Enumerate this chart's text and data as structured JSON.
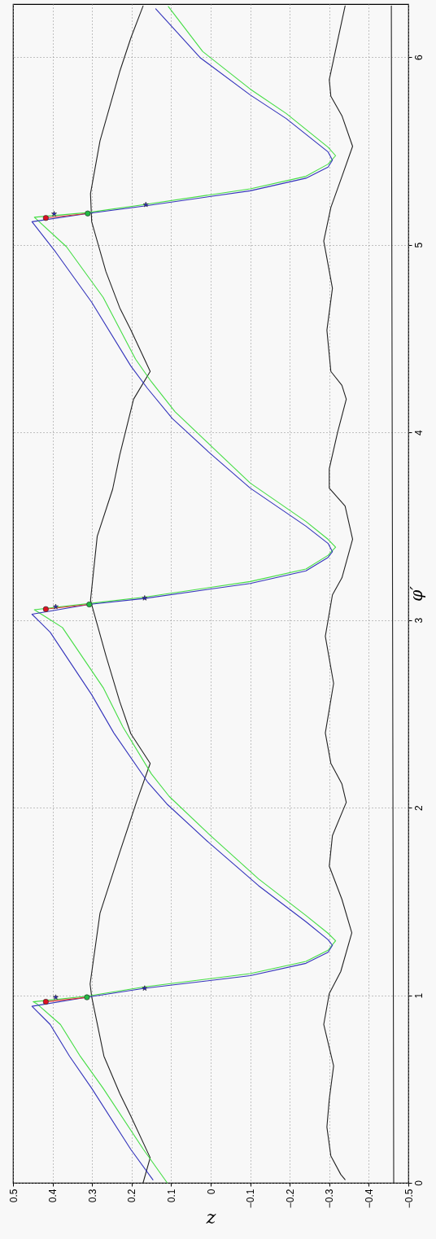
{
  "chart_data": {
    "type": "line",
    "xlabel": "z",
    "ylabel": "φ′",
    "xlim": [
      0.5,
      -0.5
    ],
    "ylim": [
      0,
      6.2832
    ],
    "xticks": [
      0.5,
      0.4,
      0.3,
      0.2,
      0.1,
      0,
      -0.1,
      -0.2,
      -0.3,
      -0.4,
      -0.5
    ],
    "yticks": [
      0,
      1,
      2,
      3,
      4,
      5,
      6
    ],
    "grid": true,
    "series": [
      {
        "color": "#222222",
        "values": [
          0,
          0.134,
          0.356,
          0.476,
          0.675,
          0.992,
          1.06,
          1.437,
          1.762,
          2.028,
          2.236,
          2.394,
          2.565,
          2.81,
          3.105,
          3.446,
          3.697,
          3.88,
          4.177,
          4.325,
          4.546,
          4.664,
          4.857,
          5.123,
          5.273,
          5.554,
          5.924,
          6.102,
          6.273
        ],
        "x": [
          0.171,
          0.153,
          0.202,
          0.23,
          0.27,
          0.301,
          0.305,
          0.28,
          0.23,
          0.188,
          0.153,
          0.202,
          0.23,
          0.265,
          0.304,
          0.287,
          0.248,
          0.23,
          0.195,
          0.153,
          0.202,
          0.23,
          0.265,
          0.301,
          0.304,
          0.28,
          0.23,
          0.202,
          0.171
        ]
      },
      {
        "color": "#222222",
        "values": [
          0.017,
          0.045,
          0.143,
          0.297,
          0.446,
          0.623,
          0.844,
          1.009,
          1.126,
          1.333,
          1.511,
          1.688,
          1.851,
          2.028,
          2.126,
          2.236,
          2.398,
          2.662,
          2.913,
          3.134,
          3.225,
          3.431,
          3.608,
          3.703,
          3.806,
          4.0,
          4.177,
          4.251,
          4.325,
          4.545,
          4.768,
          5.02,
          5.199,
          5.364,
          5.525,
          5.688,
          5.792,
          5.88,
          6.087,
          6.273
        ],
        "x": [
          -0.34,
          -0.329,
          -0.304,
          -0.294,
          -0.3,
          -0.311,
          -0.286,
          -0.3,
          -0.329,
          -0.357,
          -0.332,
          -0.3,
          -0.308,
          -0.343,
          -0.332,
          -0.304,
          -0.29,
          -0.311,
          -0.29,
          -0.308,
          -0.332,
          -0.359,
          -0.34,
          -0.3,
          -0.3,
          -0.321,
          -0.343,
          -0.332,
          -0.304,
          -0.294,
          -0.308,
          -0.286,
          -0.304,
          -0.332,
          -0.359,
          -0.332,
          -0.304,
          -0.3,
          -0.321,
          -0.34
        ]
      },
      {
        "color": "#222222",
        "values": [
          0,
          6.273
        ],
        "x": [
          -0.463,
          -0.457
        ]
      },
      {
        "color": "#44dd44",
        "values": [
          0,
          0.178,
          0.504,
          0.675,
          0.844,
          0.955,
          0.965,
          0.995,
          1.045,
          1.115,
          1.18,
          1.24,
          1.29,
          1.33,
          1.425,
          1.62,
          1.85,
          2.06,
          2.18,
          2.43,
          2.64,
          2.96,
          3.055,
          3.088,
          3.122,
          3.205,
          3.272,
          3.345,
          3.388,
          3.43,
          3.525,
          3.73,
          3.93,
          4.11,
          4.27,
          4.39,
          4.72,
          4.99,
          5.147,
          5.172,
          5.215,
          5.298,
          5.365,
          5.43,
          5.475,
          5.52,
          5.7,
          5.83,
          6.03,
          6.27
        ],
        "x": [
          0.11,
          0.17,
          0.272,
          0.33,
          0.38,
          0.44,
          0.449,
          0.313,
          0.167,
          -0.1,
          -0.241,
          -0.297,
          -0.316,
          -0.297,
          -0.241,
          -0.121,
          0.0,
          0.105,
          0.15,
          0.222,
          0.272,
          0.375,
          0.446,
          0.308,
          0.167,
          -0.1,
          -0.241,
          -0.297,
          -0.316,
          -0.297,
          -0.241,
          -0.1,
          0.0,
          0.09,
          0.15,
          0.19,
          0.272,
          0.365,
          0.446,
          0.311,
          0.167,
          -0.1,
          -0.241,
          -0.297,
          -0.316,
          -0.297,
          -0.191,
          -0.1,
          0.02,
          0.107
        ]
      },
      {
        "color": "#3333bb",
        "values": [
          0.016,
          0.178,
          0.504,
          0.675,
          0.844,
          0.941,
          0.989,
          1.037,
          1.104,
          1.17,
          1.229,
          1.266,
          1.296,
          1.392,
          1.584,
          1.814,
          2.02,
          2.138,
          2.398,
          2.602,
          2.935,
          3.031,
          3.083,
          3.115,
          3.195,
          3.262,
          3.334,
          3.364,
          3.408,
          3.5,
          3.703,
          3.895,
          4.074,
          4.235,
          4.354,
          4.694,
          4.961,
          5.123,
          5.167,
          5.207,
          5.288,
          5.355,
          5.414,
          5.451,
          5.495,
          5.673,
          5.799,
          5.998,
          6.258
        ],
        "x": [
          0.146,
          0.202,
          0.301,
          0.357,
          0.406,
          0.452,
          0.313,
          0.167,
          -0.1,
          -0.241,
          -0.297,
          -0.308,
          -0.297,
          -0.241,
          -0.121,
          0.005,
          0.111,
          0.16,
          0.245,
          0.301,
          0.406,
          0.452,
          0.308,
          0.167,
          -0.1,
          -0.241,
          -0.297,
          -0.308,
          -0.297,
          -0.241,
          -0.1,
          0.005,
          0.097,
          0.16,
          0.202,
          0.301,
          0.392,
          0.452,
          0.311,
          0.167,
          -0.1,
          -0.241,
          -0.297,
          -0.308,
          -0.297,
          -0.191,
          -0.1,
          0.027,
          0.139
        ]
      },
      {
        "color": "#dd3333",
        "values": [
          0.965,
          0.989
        ],
        "x": [
          0.417,
          0.313
        ]
      },
      {
        "color": "#dd3333",
        "values": [
          3.058,
          3.083
        ],
        "x": [
          0.417,
          0.307
        ]
      },
      {
        "color": "#dd3333",
        "values": [
          5.143,
          5.167
        ],
        "x": [
          0.417,
          0.311
        ]
      },
      {
        "type": "scatter",
        "marker": "circle",
        "color": "#dd1122",
        "values": [
          0.965,
          3.058,
          5.143
        ],
        "x": [
          0.417,
          0.417,
          0.417
        ]
      },
      {
        "type": "scatter",
        "marker": "circle",
        "color": "#22bb44",
        "values": [
          0.989,
          3.083,
          5.167
        ],
        "x": [
          0.313,
          0.307,
          0.311
        ]
      },
      {
        "type": "scatter",
        "marker": "star",
        "color": "#2222cc",
        "values": [
          0.989,
          1.037,
          3.071,
          3.117,
          5.165,
          5.214
        ],
        "x": [
          0.392,
          0.167,
          0.392,
          0.167,
          0.396,
          0.164
        ]
      }
    ]
  }
}
